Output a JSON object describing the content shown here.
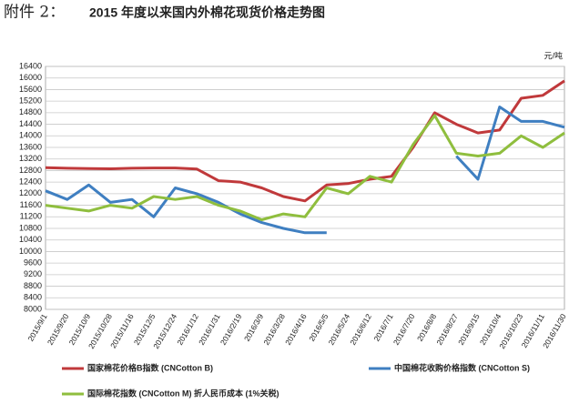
{
  "chart_data": {
    "type": "line",
    "label": "附件 2：",
    "title": "2015 年度以来国内外棉花现货价格走势图",
    "unit": "元/吨",
    "categories": [
      "2015/9/1",
      "2015/9/20",
      "2015/10/9",
      "2015/10/28",
      "2015/11/16",
      "2015/12/5",
      "2015/12/24",
      "2016/1/12",
      "2016/1/31",
      "2016/2/19",
      "2016/3/9",
      "2016/3/28",
      "2016/4/16",
      "2016/5/5",
      "2016/5/24",
      "2016/6/12",
      "2016/7/1",
      "2016/7/20",
      "2016/8/8",
      "2016/8/27",
      "2016/9/15",
      "2016/10/4",
      "2016/10/23",
      "2016/11/11",
      "2016/11/30"
    ],
    "series": [
      {
        "name": "国家棉花价格B指数 (CNCotton B)",
        "color": "#c0393b",
        "values": [
          12900,
          12880,
          12870,
          12860,
          12880,
          12890,
          12890,
          12850,
          12450,
          12400,
          12200,
          11900,
          11750,
          12300,
          12350,
          12500,
          12600,
          13600,
          14800,
          14400,
          14100,
          14200,
          15300,
          15400,
          15900
        ]
      },
      {
        "name": "中国棉花收购价格指数 (CNCotton S)",
        "color": "#3f7fc1",
        "values": [
          12100,
          11800,
          12300,
          11700,
          11800,
          11200,
          12200,
          12000,
          11700,
          11300,
          11000,
          10800,
          10650,
          10650,
          null,
          null,
          null,
          null,
          null,
          13300,
          12500,
          15000,
          14500,
          14500,
          14300
        ]
      },
      {
        "name": "国际棉花指数 (CNCotton M) 折人民币成本 (1%关税)",
        "color": "#8fbe3e",
        "values": [
          11600,
          11500,
          11400,
          11600,
          11500,
          11900,
          11800,
          11900,
          11600,
          11400,
          11100,
          11300,
          11200,
          12200,
          12000,
          12600,
          12400,
          13700,
          14700,
          13400,
          13300,
          13400,
          14000,
          13600,
          14100
        ]
      }
    ],
    "ylim": [
      8000,
      16400
    ],
    "yticks": [
      8000,
      8400,
      8800,
      9200,
      9600,
      10000,
      10400,
      10800,
      11200,
      11600,
      12000,
      12400,
      12800,
      13200,
      13600,
      14000,
      14400,
      14800,
      15200,
      15600,
      16000,
      16400
    ],
    "grid": true
  }
}
